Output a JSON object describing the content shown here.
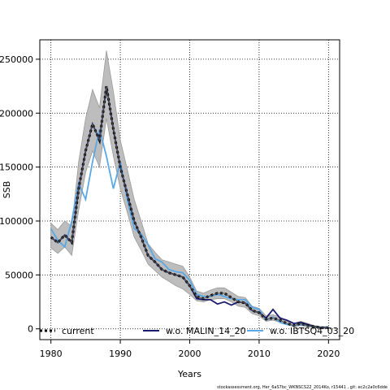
{
  "chart_data": {
    "type": "line",
    "xlabel": "Years",
    "ylabel": "SSB",
    "xlim": [
      1978.4,
      2021.6
    ],
    "ylim": [
      -10000,
      268000
    ],
    "x_ticks": [
      1980,
      1990,
      2000,
      2010,
      2020
    ],
    "y_ticks": [
      0,
      50000,
      100000,
      150000,
      200000,
      250000
    ],
    "x_tick_labels": [
      "1980",
      "1990",
      "2000",
      "2010",
      "2020"
    ],
    "y_tick_labels": [
      "0",
      "50000",
      "100000",
      "150000",
      "200000",
      "250000"
    ],
    "grid": true,
    "legend_position": "bottom",
    "footer": "stockassessment.org, Her_6aS7bc_WKNSCS22_2014Ko, r15441 , git: ec2c2a0c6dde",
    "x": [
      1980,
      1981,
      1982,
      1983,
      1984,
      1985,
      1986,
      1987,
      1988,
      1989,
      1990,
      1991,
      1992,
      1993,
      1994,
      1995,
      1996,
      1997,
      1998,
      1999,
      2000,
      2001,
      2002,
      2003,
      2004,
      2005,
      2006,
      2007,
      2008,
      2009,
      2010,
      2011,
      2012,
      2013,
      2014,
      2015,
      2016,
      2017,
      2018,
      2019,
      2020
    ],
    "series": [
      {
        "name": "current",
        "color": "#000000",
        "style": "dashed-thick",
        "values": [
          85000,
          80000,
          87000,
          80000,
          130000,
          165000,
          190000,
          175000,
          225000,
          185000,
          150000,
          125000,
          100000,
          85000,
          68000,
          62000,
          55000,
          52000,
          50000,
          48000,
          40000,
          30000,
          28000,
          31000,
          33000,
          33000,
          29000,
          25000,
          24000,
          17000,
          15000,
          9000,
          10000,
          8000,
          5000,
          3000,
          5000,
          3000,
          2000,
          1000,
          1000
        ],
        "ci_lower": [
          75000,
          70000,
          76000,
          68000,
          110000,
          145000,
          165000,
          150000,
          195000,
          160000,
          130000,
          108000,
          85000,
          73000,
          60000,
          54000,
          48000,
          44000,
          40000,
          37000,
          32000,
          26000,
          25000,
          27000,
          28000,
          28000,
          25000,
          21000,
          20000,
          14000,
          12000,
          7000,
          8000,
          6000,
          4000,
          2000,
          3000,
          2000,
          1000,
          500,
          500
        ],
        "ci_upper": [
          98000,
          92000,
          100000,
          95000,
          155000,
          195000,
          222000,
          205000,
          258000,
          220000,
          175000,
          148000,
          120000,
          100000,
          79000,
          71000,
          64000,
          62000,
          60000,
          58000,
          48000,
          35000,
          33000,
          36000,
          38000,
          38000,
          34000,
          30000,
          29000,
          21000,
          19000,
          12000,
          13000,
          11000,
          7000,
          5000,
          7000,
          5000,
          3000,
          2000,
          2000
        ]
      },
      {
        "name": "w.o. MALIN_14_20",
        "color": "#1a1a6e",
        "style": "solid",
        "values": [
          85000,
          80000,
          87000,
          80000,
          130000,
          165000,
          190000,
          175000,
          225000,
          185000,
          150000,
          125000,
          100000,
          85000,
          68000,
          62000,
          55000,
          52000,
          50000,
          48000,
          40000,
          28000,
          27000,
          27000,
          23000,
          25000,
          22000,
          25000,
          24000,
          17000,
          15000,
          10000,
          18000,
          10000,
          8000,
          5000,
          6000,
          4000,
          2000,
          1000,
          1000
        ]
      },
      {
        "name": "w.o. IBTSQ4_03_20",
        "color": "#5aa7e6",
        "style": "solid",
        "values": [
          93000,
          82000,
          76000,
          100000,
          135000,
          120000,
          155000,
          185000,
          160000,
          130000,
          155000,
          120000,
          93000,
          88000,
          78000,
          65000,
          62000,
          55000,
          53000,
          52000,
          45000,
          32000,
          30000,
          30000,
          32000,
          30000,
          28000,
          27000,
          27000,
          20000,
          18000,
          8000,
          11000,
          6000,
          4000,
          3000,
          4000,
          3000,
          2000,
          1500,
          1500
        ]
      }
    ]
  }
}
